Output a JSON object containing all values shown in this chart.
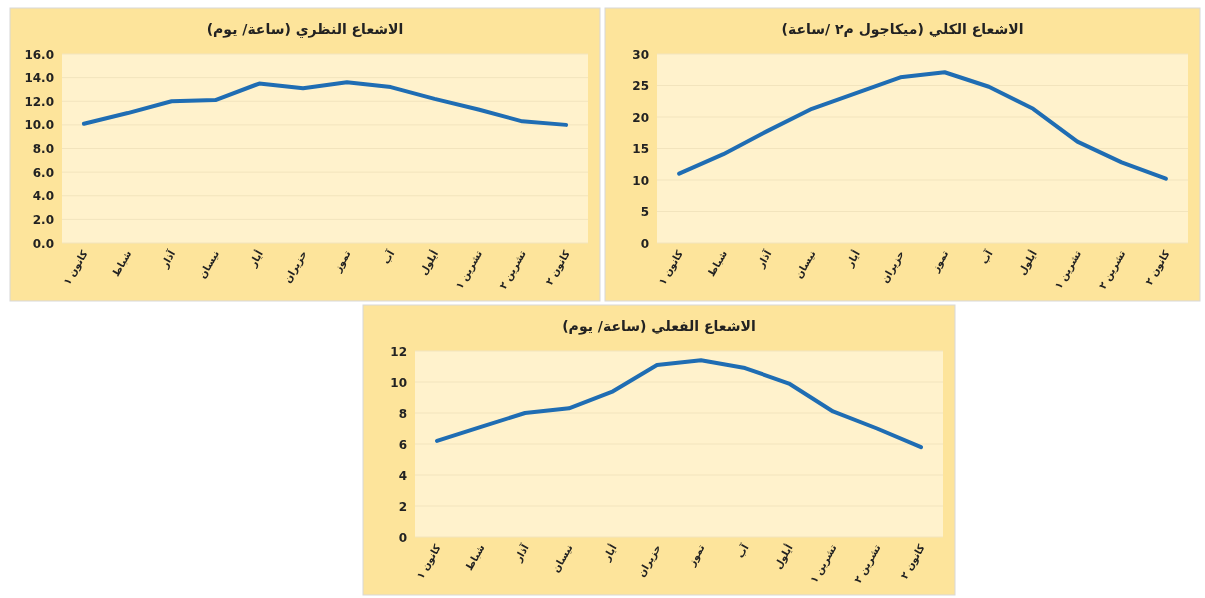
{
  "chart_data": [
    {
      "type": "line",
      "title": "الاشعاع النظري (ساعة/ يوم)",
      "categories": [
        "كانون ١",
        "شباط",
        "آذار",
        "نيسان",
        "أيار",
        "حزيران",
        "تموز",
        "آب",
        "أيلول",
        "تشرين ١",
        "تشرين ٢",
        "كانون ٢"
      ],
      "series": [
        {
          "color": "#1f6db3",
          "values": [
            10.1,
            11.0,
            12.0,
            12.1,
            13.5,
            13.1,
            13.6,
            13.2,
            12.2,
            11.3,
            10.3,
            10.0
          ]
        }
      ],
      "ylim": [
        0,
        16
      ],
      "yticks": [
        {
          "value": 0,
          "label": "0.0"
        },
        {
          "value": 2,
          "label": "2.0"
        },
        {
          "value": 4,
          "label": "4.0"
        },
        {
          "value": 6,
          "label": "6.0"
        },
        {
          "value": 8,
          "label": "8.0"
        },
        {
          "value": 10,
          "label": "10.0"
        },
        {
          "value": 12,
          "label": "12.0"
        },
        {
          "value": 14,
          "label": "14.0"
        },
        {
          "value": 16,
          "label": "16.0"
        }
      ],
      "grid": "y",
      "marker": "none",
      "line_style": "solid"
    },
    {
      "type": "line",
      "title": "الاشعاع الكلي (ميكاجول م٢ /ساعة)",
      "categories": [
        "كانون ١",
        "شباط",
        "آذار",
        "نيسان",
        "أيار",
        "حزيران",
        "تموز",
        "آب",
        "أيلول",
        "تشرين ١",
        "تشرين ٢",
        "كانون ٢"
      ],
      "series": [
        {
          "color": "#1f6db3",
          "values": [
            11.0,
            14.1,
            17.8,
            21.3,
            23.8,
            26.3,
            27.1,
            24.8,
            21.3,
            16.1,
            12.8,
            10.2
          ]
        }
      ],
      "ylim": [
        0,
        30
      ],
      "yticks": [
        0,
        5,
        10,
        15,
        20,
        25,
        30
      ],
      "grid": "y",
      "marker": "none",
      "line_style": "solid"
    },
    {
      "type": "line",
      "title": "الاشعاع الفعلي (ساعة/ يوم)",
      "categories": [
        "كانون ١",
        "شباط",
        "آذار",
        "نيسان",
        "أيار",
        "حزيران",
        "تموز",
        "آب",
        "أيلول",
        "تشرين ١",
        "تشرين ٢",
        "كانون ٢"
      ],
      "series": [
        {
          "color": "#1f6db3",
          "values": [
            6.2,
            7.1,
            8.0,
            8.3,
            9.4,
            11.1,
            11.4,
            10.9,
            9.9,
            8.1,
            7.0,
            5.8
          ]
        }
      ],
      "ylim": [
        0,
        12
      ],
      "yticks": [
        0,
        2,
        4,
        6,
        8,
        10,
        12
      ],
      "grid": "y",
      "marker": "none",
      "line_style": "solid"
    }
  ]
}
